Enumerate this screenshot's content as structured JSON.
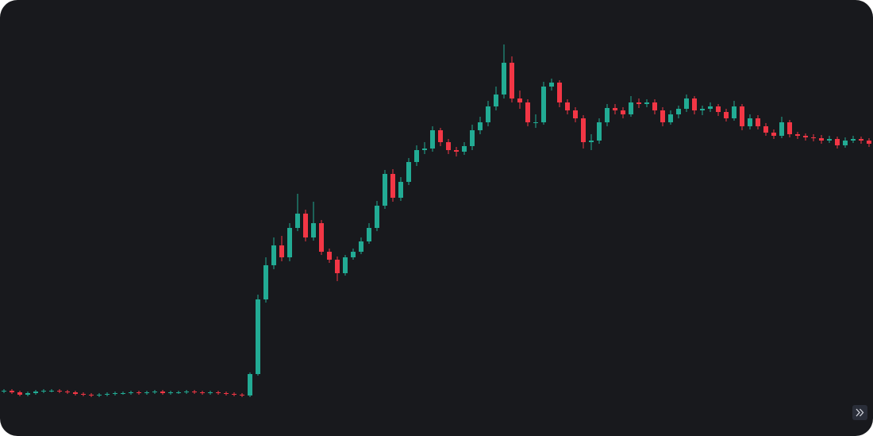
{
  "chart_data": {
    "type": "candlestick",
    "ylim": [
      0,
      549
    ],
    "up_color": "#22ab94",
    "down_color": "#f23645",
    "open": [
      56,
      57,
      55,
      52,
      54,
      56,
      57,
      57,
      56,
      55,
      53,
      52,
      51,
      52,
      53,
      54,
      54,
      55,
      54,
      55,
      56,
      54,
      55,
      55,
      56,
      55,
      54,
      55,
      54,
      53,
      52,
      51,
      78,
      172,
      215,
      240,
      225,
      262,
      280,
      250,
      268,
      232,
      222,
      205,
      225,
      232,
      245,
      262,
      290,
      330,
      300,
      320,
      345,
      360,
      362,
      385,
      370,
      360,
      358,
      365,
      385,
      395,
      415,
      430,
      470,
      425,
      420,
      395,
      395,
      440,
      445,
      420,
      410,
      400,
      370,
      372,
      395,
      413,
      410,
      405,
      420,
      418,
      420,
      410,
      395,
      405,
      412,
      425,
      410,
      412,
      415,
      408,
      400,
      415,
      390,
      400,
      390,
      382,
      378,
      395,
      380,
      378,
      376,
      375,
      372,
      374,
      366,
      372,
      374,
      372
    ],
    "high": [
      59,
      59,
      57,
      56,
      58,
      59,
      59,
      59,
      58,
      57,
      55,
      54,
      54,
      55,
      56,
      56,
      57,
      57,
      57,
      58,
      58,
      57,
      57,
      58,
      58,
      57,
      57,
      57,
      56,
      55,
      54,
      80,
      178,
      225,
      250,
      252,
      268,
      305,
      285,
      295,
      272,
      236,
      226,
      228,
      236,
      250,
      268,
      296,
      335,
      336,
      326,
      350,
      366,
      370,
      390,
      388,
      374,
      364,
      370,
      392,
      402,
      422,
      440,
      493,
      478,
      435,
      424,
      405,
      446,
      450,
      448,
      424,
      414,
      404,
      380,
      400,
      418,
      418,
      414,
      428,
      425,
      424,
      424,
      414,
      410,
      416,
      430,
      428,
      416,
      420,
      418,
      412,
      422,
      418,
      405,
      404,
      394,
      386,
      402,
      398,
      383,
      381,
      380,
      379,
      378,
      377,
      376,
      378,
      377,
      375
    ],
    "low": [
      54,
      53,
      50,
      50,
      52,
      54,
      55,
      54,
      53,
      51,
      50,
      49,
      49,
      50,
      51,
      52,
      52,
      52,
      52,
      53,
      52,
      52,
      53,
      53,
      53,
      52,
      52,
      52,
      51,
      50,
      49,
      49,
      76,
      168,
      210,
      220,
      220,
      258,
      245,
      246,
      228,
      218,
      195,
      202,
      222,
      229,
      242,
      258,
      286,
      295,
      296,
      316,
      340,
      355,
      358,
      365,
      355,
      352,
      354,
      360,
      380,
      390,
      410,
      425,
      420,
      412,
      390,
      388,
      392,
      435,
      414,
      405,
      395,
      362,
      360,
      368,
      390,
      405,
      400,
      402,
      413,
      414,
      405,
      390,
      392,
      400,
      408,
      405,
      404,
      408,
      403,
      396,
      397,
      385,
      386,
      386,
      378,
      374,
      375,
      376,
      374,
      372,
      371,
      368,
      369,
      362,
      363,
      369,
      368,
      364
    ],
    "close": [
      57,
      55,
      52,
      54,
      56,
      57,
      57,
      56,
      55,
      53,
      52,
      51,
      52,
      53,
      54,
      54,
      55,
      54,
      55,
      56,
      54,
      55,
      55,
      56,
      55,
      54,
      55,
      54,
      53,
      52,
      51,
      78,
      172,
      215,
      240,
      225,
      262,
      280,
      250,
      268,
      232,
      222,
      205,
      225,
      232,
      245,
      262,
      290,
      330,
      300,
      320,
      345,
      360,
      362,
      385,
      370,
      360,
      358,
      365,
      385,
      395,
      415,
      430,
      470,
      425,
      420,
      395,
      395,
      440,
      445,
      420,
      410,
      400,
      370,
      372,
      395,
      413,
      410,
      405,
      420,
      418,
      420,
      410,
      395,
      405,
      412,
      425,
      410,
      412,
      415,
      408,
      400,
      415,
      390,
      400,
      390,
      382,
      378,
      395,
      380,
      378,
      376,
      375,
      372,
      374,
      366,
      372,
      374,
      372,
      368
    ]
  }
}
